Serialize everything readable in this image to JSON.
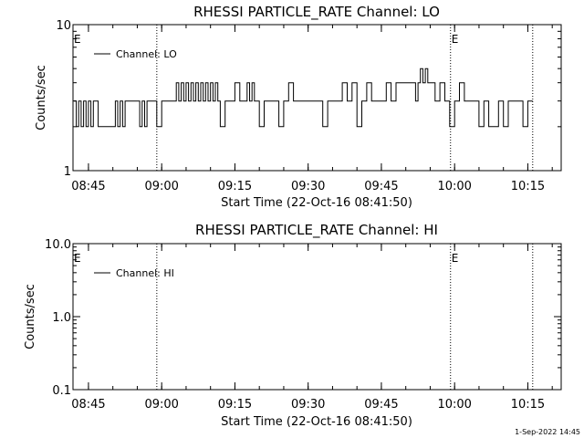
{
  "footer": {
    "timestamp": "1-Sep-2022 14:45"
  },
  "chart_data": [
    {
      "type": "line",
      "title": "RHESSI PARTICLE_RATE Channel: LO",
      "xlabel": "Start Time (22-Oct-16 08:41:50)",
      "ylabel": "Counts/sec",
      "yscale": "log",
      "ylim": [
        1,
        10
      ],
      "y_tick_labels": [
        "1",
        "10"
      ],
      "xlim_minutes": [
        "08:41:50",
        "10:21:50"
      ],
      "x_tick_labels": [
        "08:45",
        "09:00",
        "09:15",
        "09:30",
        "09:45",
        "10:00",
        "10:15"
      ],
      "legend": {
        "label": "Channel: LO",
        "placement": "top-left"
      },
      "event_markers": [
        {
          "time": "08:41:50",
          "label": "E"
        },
        {
          "time": "08:59:00",
          "label": ""
        },
        {
          "time": "09:59:10",
          "label": "E"
        },
        {
          "time": "10:16:00",
          "label": ""
        }
      ],
      "series": [
        {
          "name": "Channel: LO",
          "x": [
            "08:42",
            "08:42:30",
            "08:43",
            "08:43:30",
            "08:44",
            "08:44:30",
            "08:45",
            "08:45:30",
            "08:46",
            "08:47",
            "08:48",
            "08:49",
            "08:50",
            "08:50:30",
            "08:51",
            "08:51:30",
            "08:52",
            "08:52:30",
            "08:53",
            "08:54",
            "08:55",
            "08:55:30",
            "08:56",
            "08:56:30",
            "08:57",
            "08:58",
            "08:59",
            "09:00",
            "09:01",
            "09:02",
            "09:03",
            "09:03:30",
            "09:04",
            "09:04:30",
            "09:05",
            "09:05:30",
            "09:06",
            "09:06:30",
            "09:07",
            "09:07:30",
            "09:08",
            "09:08:30",
            "09:09",
            "09:09:30",
            "09:10",
            "09:10:30",
            "09:11",
            "09:11:30",
            "09:12",
            "09:13",
            "09:14",
            "09:15",
            "09:16",
            "09:17",
            "09:17:30",
            "09:18",
            "09:18:30",
            "09:19",
            "09:20",
            "09:21",
            "09:22",
            "09:23",
            "09:24",
            "09:25",
            "09:26",
            "09:27",
            "09:28",
            "09:28:30",
            "09:29",
            "09:30",
            "09:31",
            "09:32",
            "09:33",
            "09:34",
            "09:35",
            "09:36",
            "09:37",
            "09:38",
            "09:39",
            "09:40",
            "09:41",
            "09:42",
            "09:43",
            "09:44",
            "09:45",
            "09:46",
            "09:47",
            "09:48",
            "09:49",
            "09:49:30",
            "09:50",
            "09:51",
            "09:52",
            "09:52:30",
            "09:53",
            "09:53:30",
            "09:54",
            "09:54:30",
            "09:55",
            "09:56",
            "09:57",
            "09:58",
            "09:59",
            "10:00",
            "10:01",
            "10:02",
            "10:03",
            "10:04",
            "10:05",
            "10:06",
            "10:07",
            "10:08",
            "10:09",
            "10:10",
            "10:11",
            "10:12",
            "10:13",
            "10:14",
            "10:15",
            "10:16"
          ],
          "values": [
            3,
            2,
            3,
            2,
            3,
            2,
            3,
            2,
            3,
            2,
            2,
            2,
            2,
            3,
            2,
            3,
            2,
            3,
            3,
            3,
            3,
            2,
            3,
            2,
            3,
            3,
            2,
            3,
            3,
            3,
            4,
            3,
            4,
            3,
            4,
            3,
            4,
            3,
            4,
            3,
            4,
            3,
            4,
            3,
            4,
            3,
            4,
            3,
            2,
            3,
            3,
            4,
            3,
            3,
            4,
            3,
            4,
            3,
            2,
            3,
            3,
            3,
            2,
            3,
            4,
            3,
            3,
            3,
            3,
            3,
            3,
            3,
            2,
            3,
            3,
            3,
            4,
            3,
            4,
            2,
            3,
            4,
            3,
            3,
            3,
            4,
            3,
            4,
            4,
            4,
            4,
            4,
            3,
            4,
            5,
            4,
            5,
            4,
            4,
            3,
            4,
            3,
            2,
            3,
            4,
            3,
            3,
            3,
            2,
            3,
            2,
            2,
            3,
            2,
            3,
            3,
            3,
            2,
            3,
            3
          ]
        }
      ]
    },
    {
      "type": "line",
      "title": "RHESSI PARTICLE_RATE Channel: HI",
      "xlabel": "Start Time (22-Oct-16 08:41:50)",
      "ylabel": "Counts/sec",
      "yscale": "log",
      "ylim": [
        0.1,
        10
      ],
      "y_tick_labels": [
        "0.1",
        "1.0",
        "10.0"
      ],
      "xlim_minutes": [
        "08:41:50",
        "10:21:50"
      ],
      "x_tick_labels": [
        "08:45",
        "09:00",
        "09:15",
        "09:30",
        "09:45",
        "10:00",
        "10:15"
      ],
      "legend": {
        "label": "Channel: HI",
        "placement": "top-left"
      },
      "event_markers": [
        {
          "time": "08:41:50",
          "label": "E"
        },
        {
          "time": "08:59:00",
          "label": ""
        },
        {
          "time": "09:59:10",
          "label": "E"
        },
        {
          "time": "10:16:00",
          "label": ""
        }
      ],
      "series": [
        {
          "name": "Channel: HI",
          "x": [],
          "values": []
        }
      ]
    }
  ]
}
